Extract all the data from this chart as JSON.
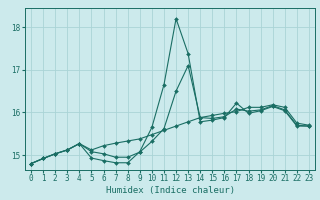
{
  "xlabel": "Humidex (Indice chaleur)",
  "bg_color": "#cceaec",
  "grid_color": "#aad4d6",
  "line_color": "#1a6e64",
  "xlim": [
    -0.5,
    23.5
  ],
  "ylim": [
    14.65,
    18.45
  ],
  "yticks": [
    15,
    16,
    17,
    18
  ],
  "xticks": [
    0,
    1,
    2,
    3,
    4,
    5,
    6,
    7,
    8,
    9,
    10,
    11,
    12,
    13,
    14,
    15,
    16,
    17,
    18,
    19,
    20,
    21,
    22,
    23
  ],
  "line1_x": [
    0,
    1,
    2,
    3,
    4,
    5,
    6,
    7,
    8,
    9,
    10,
    11,
    12,
    13,
    14,
    15,
    16,
    17,
    18,
    19,
    20,
    21,
    22,
    23
  ],
  "line1_y": [
    14.8,
    14.92,
    15.03,
    15.12,
    15.27,
    14.93,
    14.87,
    14.82,
    14.82,
    15.08,
    15.65,
    16.65,
    18.2,
    17.38,
    15.78,
    15.82,
    15.88,
    16.22,
    15.98,
    16.04,
    16.14,
    16.04,
    15.68,
    15.68
  ],
  "line2_x": [
    0,
    1,
    2,
    3,
    4,
    5,
    6,
    7,
    8,
    9,
    10,
    11,
    12,
    13,
    14,
    15,
    16,
    17,
    18,
    19,
    20,
    21,
    22,
    23
  ],
  "line2_y": [
    14.8,
    14.92,
    15.03,
    15.12,
    15.27,
    15.12,
    15.22,
    15.28,
    15.33,
    15.38,
    15.48,
    15.58,
    15.68,
    15.78,
    15.88,
    15.93,
    15.98,
    16.02,
    16.12,
    16.12,
    16.18,
    16.12,
    15.75,
    15.7
  ],
  "line3_x": [
    0,
    1,
    2,
    3,
    4,
    5,
    6,
    7,
    8,
    9,
    10,
    11,
    12,
    13,
    14,
    15,
    16,
    17,
    18,
    19,
    20,
    21,
    22,
    23
  ],
  "line3_y": [
    14.8,
    14.92,
    15.03,
    15.12,
    15.27,
    15.08,
    15.03,
    14.95,
    14.95,
    15.07,
    15.32,
    15.62,
    16.5,
    17.1,
    15.88,
    15.86,
    15.9,
    16.08,
    16.03,
    16.06,
    16.16,
    16.06,
    15.7,
    15.68
  ]
}
